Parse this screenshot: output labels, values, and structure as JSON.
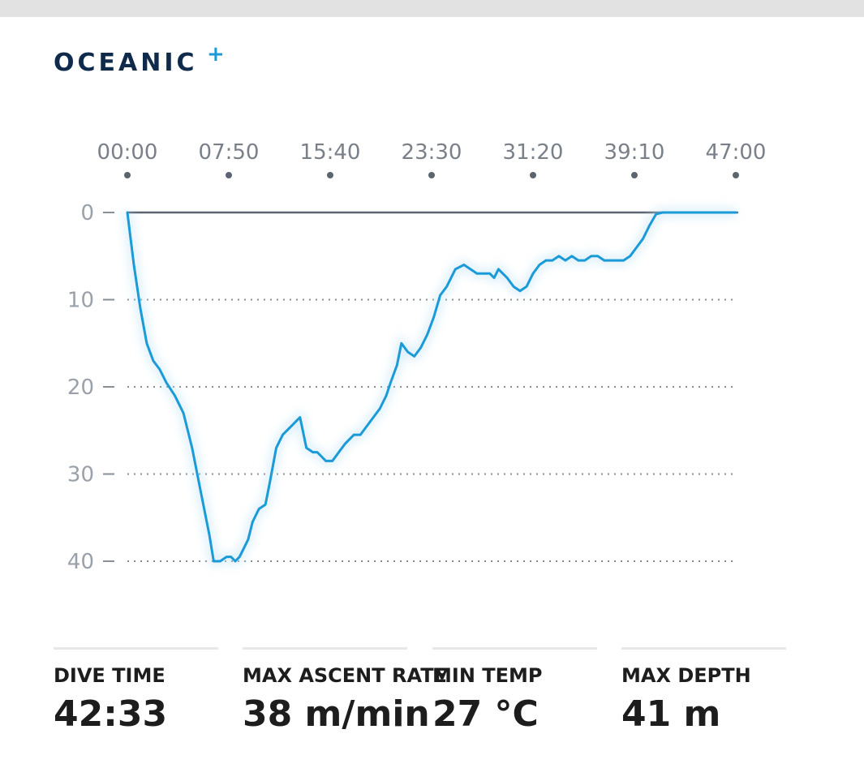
{
  "brand": {
    "name": "OCEANIC",
    "plus": "+"
  },
  "chart_data": {
    "type": "line",
    "title": "",
    "xlabel": "",
    "ylabel": "",
    "x_ticks": [
      "00:00",
      "07:50",
      "15:40",
      "23:30",
      "31:20",
      "39:10",
      "47:00"
    ],
    "x_range_seconds": [
      0,
      2820
    ],
    "y_ticks": [
      0,
      10,
      20,
      30,
      40
    ],
    "y_range": [
      0,
      40
    ],
    "y_inverted": true,
    "grid": "dotted horizontal",
    "colors": {
      "profile": "#1a9ad6",
      "surface": "#5b6470",
      "grid": "#8a8f96"
    },
    "series": [
      {
        "x": [
          0,
          30,
          60,
          90,
          120,
          150,
          180,
          220,
          260,
          300,
          340,
          380,
          400,
          430,
          460,
          480,
          500,
          520,
          540,
          560,
          580,
          610,
          640,
          660,
          690,
          720,
          760,
          800,
          830,
          860,
          880,
          900,
          920,
          950,
          980,
          1010,
          1050,
          1080,
          1110,
          1140,
          1170,
          1200,
          1220,
          1250,
          1270,
          1300,
          1330,
          1360,
          1390,
          1420,
          1450,
          1480,
          1520,
          1560,
          1590,
          1620,
          1650,
          1680,
          1700,
          1720,
          1740,
          1760,
          1790,
          1820,
          1850,
          1880,
          1910,
          1940,
          1970,
          2000,
          2030,
          2060,
          2090,
          2120,
          2150,
          2180,
          2210,
          2240,
          2270,
          2300,
          2330,
          2360,
          2390,
          2420,
          2450,
          2480,
          2510,
          2540,
          2570,
          2600,
          2630,
          2660,
          2690,
          2720,
          2760,
          2800,
          2820
        ],
        "y": [
          0,
          6,
          11,
          15,
          17,
          18,
          19.5,
          21,
          23,
          27,
          32,
          37,
          40,
          40,
          39.5,
          39.5,
          40,
          39.5,
          38.5,
          37.5,
          35.5,
          34,
          33.5,
          31,
          27,
          25.5,
          24.5,
          23.5,
          27,
          27.5,
          27.5,
          28,
          28.5,
          28.5,
          27.5,
          26.5,
          25.5,
          25.5,
          24.5,
          23.5,
          22.5,
          21,
          19.5,
          17.5,
          15,
          16,
          16.5,
          15.5,
          14,
          12,
          9.5,
          8.5,
          6.5,
          6,
          6.5,
          7,
          7,
          7,
          7.5,
          6.5,
          7,
          7.5,
          8.5,
          9,
          8.5,
          7,
          6,
          5.5,
          5.5,
          5,
          5.5,
          5,
          5.5,
          5.5,
          5,
          5,
          5.5,
          5.5,
          5.5,
          5.5,
          5,
          4,
          3,
          1.5,
          0.2,
          0,
          0,
          0,
          0,
          0,
          0,
          0,
          0,
          0,
          0,
          0,
          0
        ]
      }
    ]
  },
  "stats": [
    {
      "label": "DIVE TIME",
      "value": "42:33"
    },
    {
      "label": "MAX ASCENT RATE",
      "value": "38 m/min"
    },
    {
      "label": "MIN TEMP",
      "value": "27 °C"
    },
    {
      "label": "MAX DEPTH",
      "value": "41 m"
    }
  ]
}
